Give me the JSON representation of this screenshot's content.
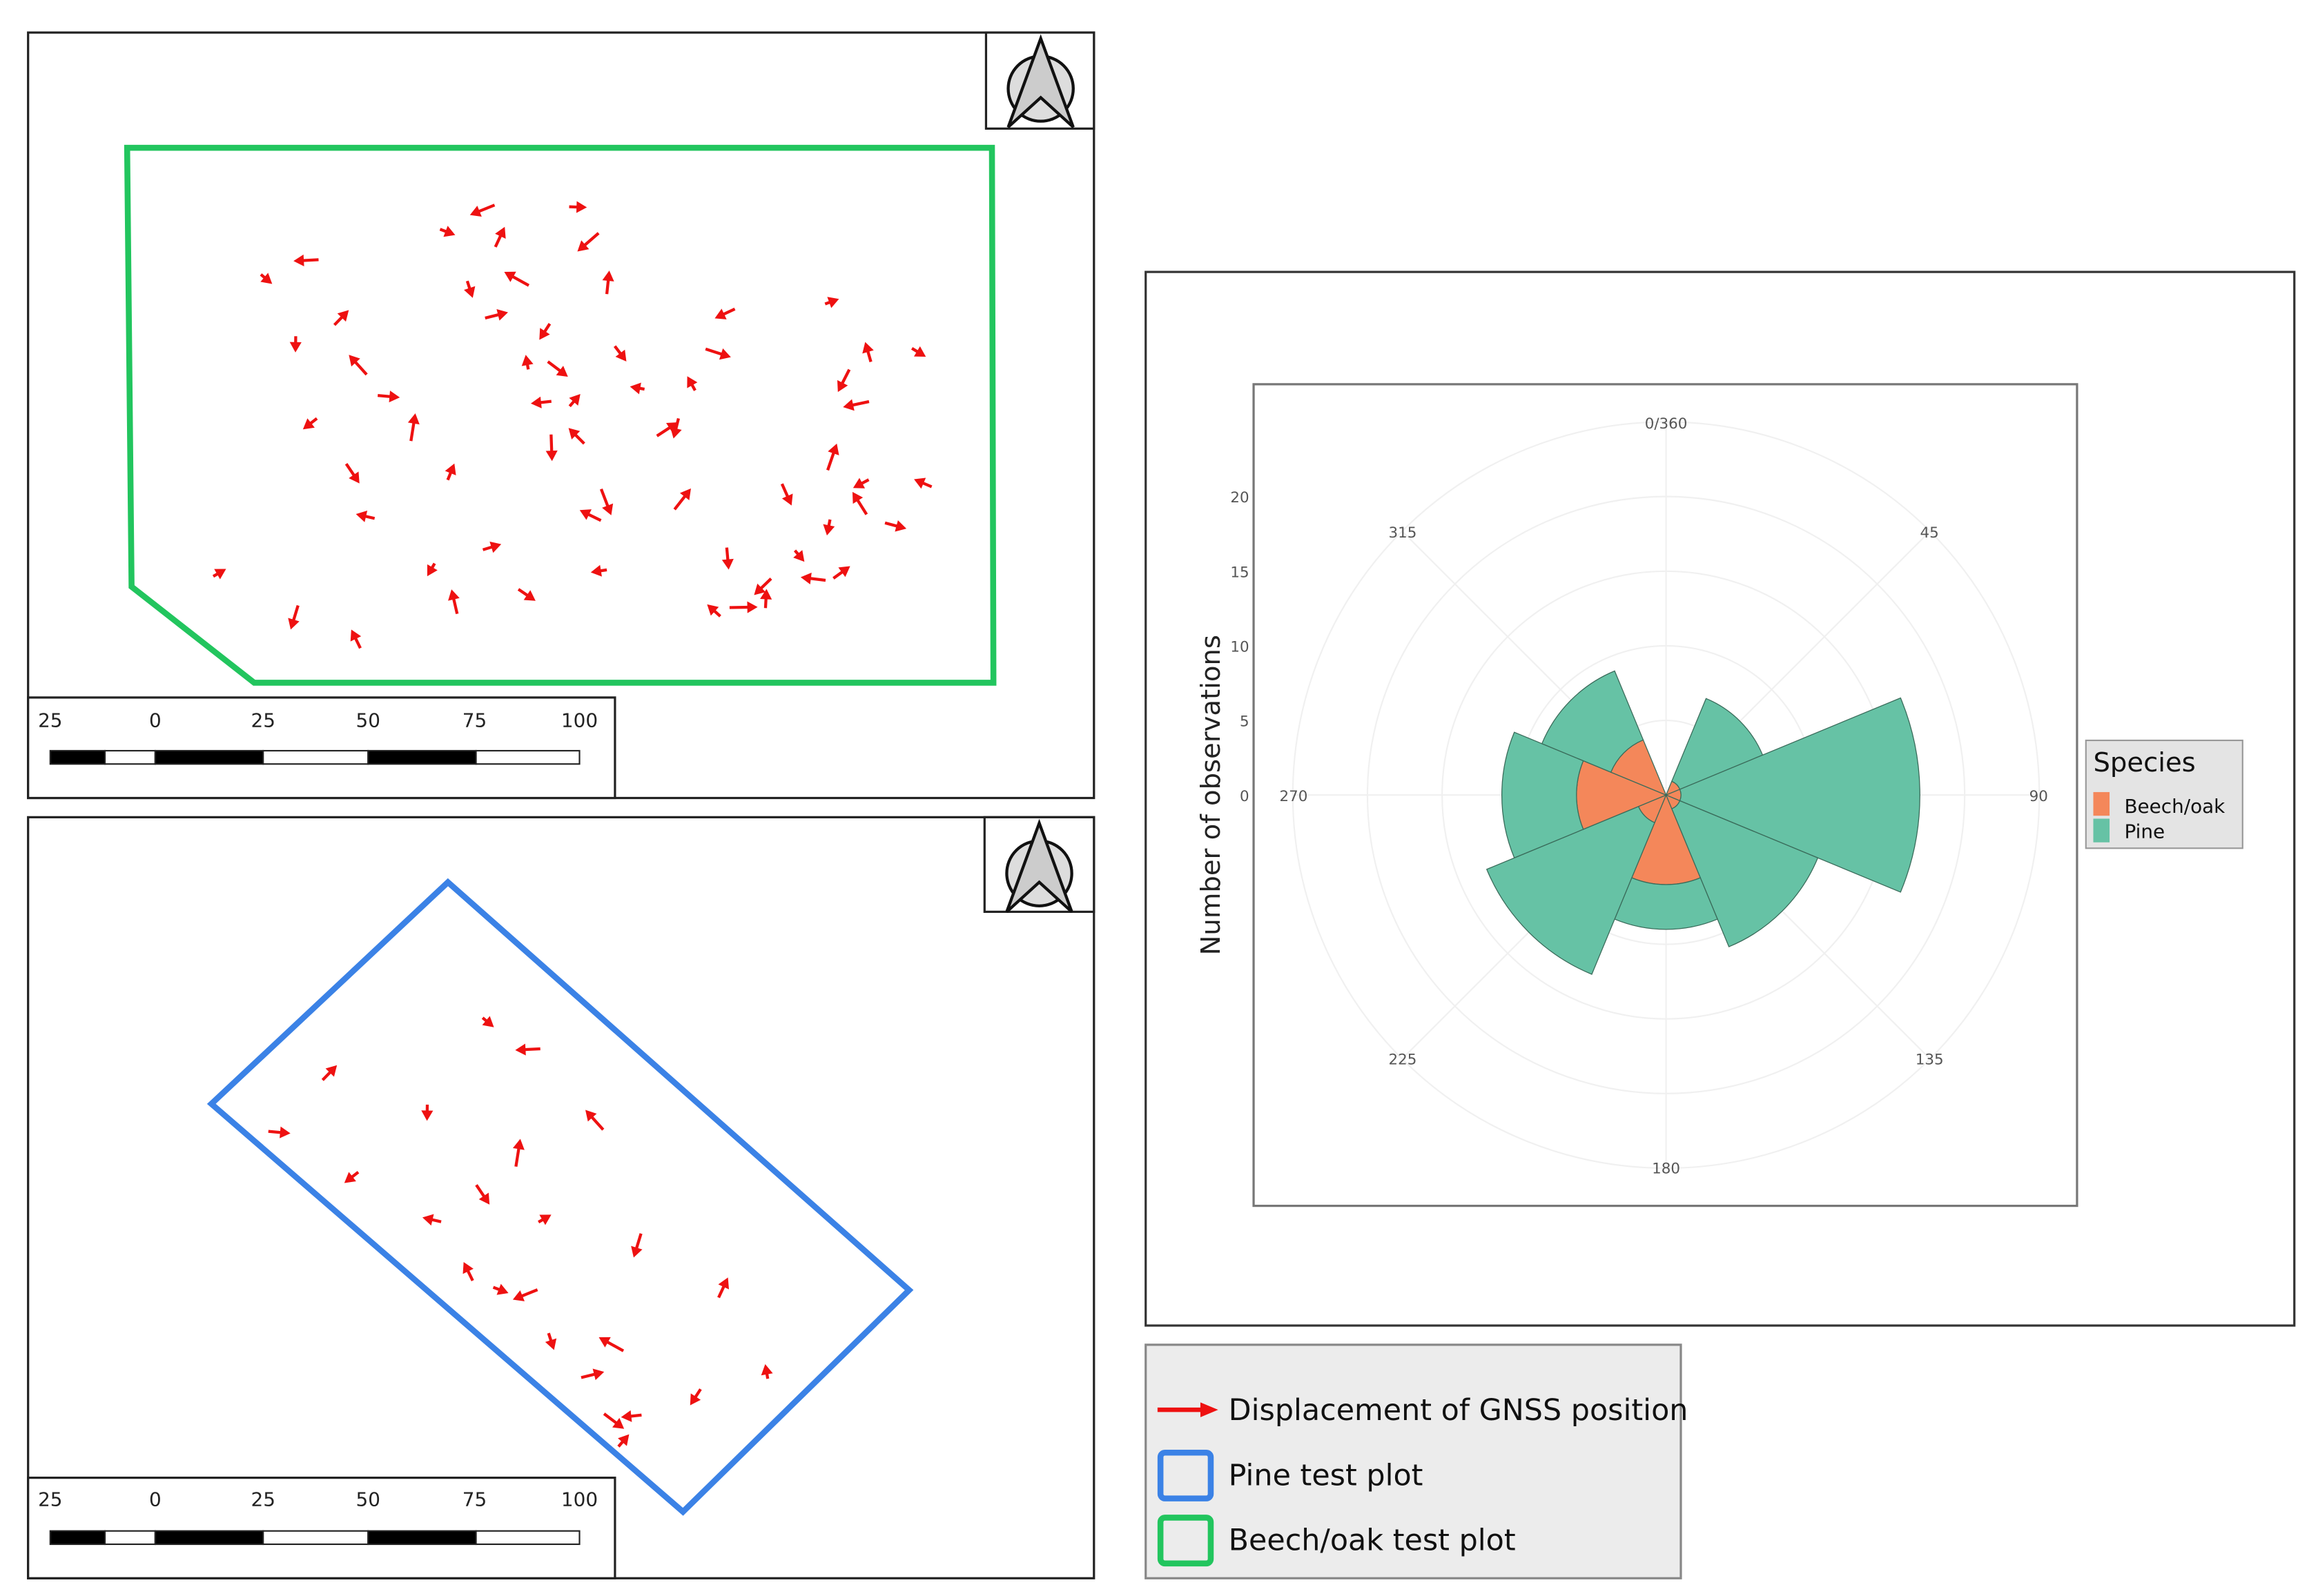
{
  "maps": [
    {
      "id": "beech-oak",
      "boundary_color": "#22c55e",
      "scale_labels": [
        "25",
        "0",
        "25",
        "50",
        "75",
        "100"
      ]
    },
    {
      "id": "pine",
      "boundary_color": "#3b82e6",
      "scale_labels": [
        "25",
        "0",
        "25",
        "50",
        "75",
        "100"
      ]
    }
  ],
  "arrow_color": "#ee1111",
  "legend": {
    "items": [
      {
        "label": "Displacement of GNSS position",
        "symbol": "red-arrow"
      },
      {
        "label": "Pine test plot",
        "symbol": "blue-square",
        "color": "#3b82e6"
      },
      {
        "label": "Beech/oak test plot",
        "symbol": "green-square",
        "color": "#22c55e"
      }
    ]
  },
  "chart_data": {
    "type": "bar",
    "coord": "polar",
    "stacked": true,
    "ylabel": "Number of observations",
    "y_ticks": [
      "0",
      "5",
      "10",
      "15",
      "20"
    ],
    "ylim": [
      0,
      22
    ],
    "angle_labels": [
      "0/360",
      "45",
      "90",
      "135",
      "180",
      "225",
      "270",
      "315"
    ],
    "categories": [
      0,
      45,
      90,
      135,
      180,
      225,
      270,
      315
    ],
    "bin_width_deg": 45,
    "legend_title": "Species",
    "legend_position": "right",
    "series": [
      {
        "name": "Beech/oak",
        "color": "#f4875a",
        "values": [
          0,
          1,
          1,
          1,
          6,
          2,
          6,
          4
        ]
      },
      {
        "name": "Pine",
        "color": "#66c2a5",
        "values": [
          0,
          6,
          16,
          10,
          3,
          11,
          5,
          5
        ]
      }
    ]
  }
}
